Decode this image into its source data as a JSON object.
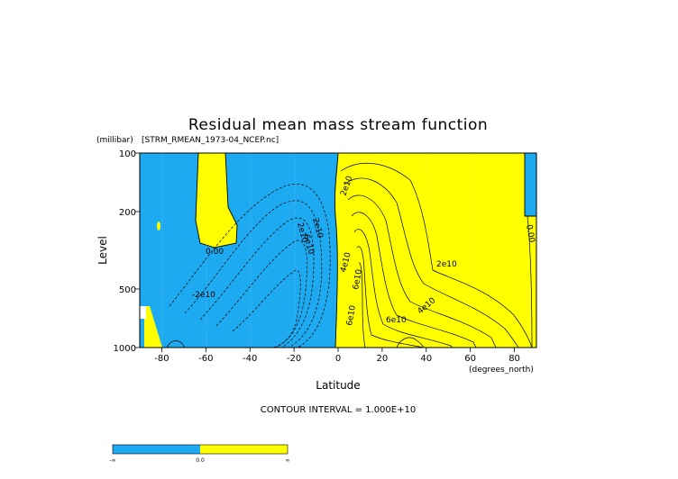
{
  "chart_data": {
    "type": "heatmap",
    "title": "Residual mean mass stream function",
    "source_label": "[STRM_RMEAN_1973-04_NCEP.nc]",
    "xlabel": "Latitude",
    "xunits": "(degrees_north)",
    "ylabel": "Level",
    "yunits": "(millibar)",
    "x_ticks": [
      -80,
      -60,
      -40,
      -20,
      0,
      20,
      40,
      60,
      80
    ],
    "x_tick_labels": [
      "-80",
      "-60",
      "-40",
      "-20",
      "0",
      "20",
      "40",
      "60",
      "80"
    ],
    "y_ticks": [
      100,
      200,
      500,
      1000
    ],
    "y_tick_labels": [
      "100",
      "200",
      "500",
      "1000"
    ],
    "xlim": [
      -90,
      90
    ],
    "ylim": [
      1000,
      100
    ],
    "y_scale": "log",
    "contour_interval_text": "CONTOUR INTERVAL = 1.000E+10",
    "contour_labels": [
      "0.00",
      "-2e10",
      "2e10",
      "6e10",
      "2e10",
      "2e10",
      "4e10",
      "6e10",
      "6e10",
      "2e10",
      "4e10",
      "6e10",
      "0.00"
    ],
    "colorbar": {
      "labels": [
        "-∞",
        "0.0",
        "∞"
      ],
      "colors": [
        "#1eaaf0",
        "#ffff00"
      ]
    }
  },
  "colors": {
    "negative": "#1eaaf0",
    "positive": "#ffff00",
    "line": "#000000"
  }
}
